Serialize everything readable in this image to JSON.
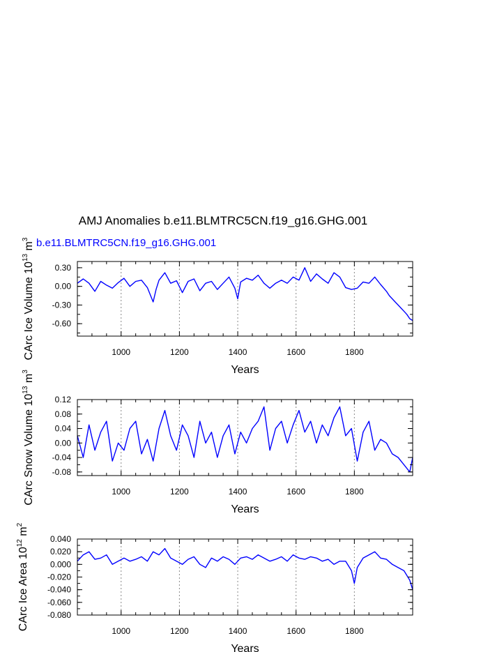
{
  "title": "AMJ Anomalies b.e11.BLMTRC5CN.f19_g16.GHG.001",
  "colors": {
    "series": "#0000ff",
    "axis": "#000000",
    "grid": "#888888"
  },
  "chart_data": [
    {
      "type": "line",
      "legend_label": "b.e11.BLMTRC5CN.f19_g16.GHG.001",
      "ylabel": {
        "main": "CArc Ice Volume 10",
        "exp1": "13",
        "mid": " m",
        "exp2": "3"
      },
      "xlabel": "Years",
      "xlim": [
        850,
        2000
      ],
      "ylim": [
        -0.8,
        0.4
      ],
      "xticks": [
        1000,
        1200,
        1400,
        1600,
        1800
      ],
      "xtick_labels": [
        "1000",
        "1200",
        "1400",
        "1600",
        "1800"
      ],
      "yticks": [
        0.3,
        0.0,
        -0.3,
        -0.6
      ],
      "ytick_labels": [
        "0.30",
        "0.00",
        "-0.30",
        "-0.60"
      ],
      "x": [
        850,
        870,
        890,
        910,
        930,
        950,
        970,
        990,
        1010,
        1030,
        1050,
        1070,
        1090,
        1110,
        1120,
        1130,
        1150,
        1170,
        1190,
        1210,
        1230,
        1250,
        1270,
        1290,
        1310,
        1330,
        1350,
        1370,
        1390,
        1400,
        1410,
        1430,
        1450,
        1470,
        1490,
        1510,
        1530,
        1550,
        1570,
        1590,
        1610,
        1630,
        1650,
        1670,
        1690,
        1710,
        1730,
        1750,
        1770,
        1790,
        1810,
        1830,
        1850,
        1870,
        1890,
        1910,
        1920,
        1930,
        1940,
        1950,
        1960,
        1970,
        1980,
        1990,
        2000
      ],
      "values": [
        0.05,
        0.12,
        0.05,
        -0.08,
        0.08,
        0.02,
        -0.03,
        0.06,
        0.13,
        0.0,
        0.08,
        0.1,
        -0.02,
        -0.25,
        -0.05,
        0.1,
        0.22,
        0.05,
        0.09,
        -0.1,
        0.08,
        0.12,
        -0.07,
        0.05,
        0.08,
        -0.05,
        0.05,
        0.15,
        -0.03,
        -0.2,
        0.07,
        0.13,
        0.1,
        0.18,
        0.05,
        -0.03,
        0.05,
        0.1,
        0.05,
        0.15,
        0.1,
        0.3,
        0.08,
        0.2,
        0.12,
        0.05,
        0.22,
        0.15,
        -0.02,
        -0.05,
        -0.03,
        0.07,
        0.05,
        0.15,
        0.03,
        -0.08,
        -0.15,
        -0.2,
        -0.25,
        -0.3,
        -0.35,
        -0.4,
        -0.45,
        -0.52,
        -0.55
      ]
    },
    {
      "type": "line",
      "ylabel": {
        "main": "CArc Snow Volume 10",
        "exp1": "13",
        "mid": " m",
        "exp2": "3"
      },
      "xlabel": "Years",
      "xlim": [
        850,
        2000
      ],
      "ylim": [
        -0.09,
        0.12
      ],
      "xticks": [
        1000,
        1200,
        1400,
        1600,
        1800
      ],
      "xtick_labels": [
        "1000",
        "1200",
        "1400",
        "1600",
        "1800"
      ],
      "yticks": [
        0.12,
        0.08,
        0.04,
        0.0,
        -0.04,
        -0.08
      ],
      "ytick_labels": [
        "0.12",
        "0.08",
        "0.04",
        "0.00",
        "-0.04",
        "-0.08"
      ],
      "x": [
        850,
        870,
        890,
        910,
        930,
        950,
        970,
        990,
        1010,
        1030,
        1050,
        1070,
        1090,
        1110,
        1130,
        1150,
        1170,
        1190,
        1210,
        1230,
        1250,
        1270,
        1290,
        1310,
        1330,
        1350,
        1370,
        1390,
        1410,
        1430,
        1450,
        1470,
        1490,
        1510,
        1530,
        1550,
        1570,
        1590,
        1610,
        1630,
        1650,
        1670,
        1690,
        1710,
        1730,
        1750,
        1770,
        1790,
        1810,
        1830,
        1850,
        1870,
        1890,
        1910,
        1930,
        1950,
        1970,
        1990,
        2000
      ],
      "values": [
        0.02,
        -0.04,
        0.05,
        -0.02,
        0.03,
        0.06,
        -0.05,
        0.0,
        -0.02,
        0.04,
        0.06,
        -0.03,
        0.01,
        -0.05,
        0.04,
        0.09,
        0.02,
        -0.02,
        0.05,
        0.02,
        -0.04,
        0.06,
        0.0,
        0.03,
        -0.04,
        0.02,
        0.05,
        -0.03,
        0.03,
        0.0,
        0.04,
        0.06,
        0.1,
        -0.02,
        0.04,
        0.06,
        0.0,
        0.05,
        0.09,
        0.03,
        0.06,
        0.0,
        0.05,
        0.02,
        0.07,
        0.1,
        0.02,
        0.04,
        -0.05,
        0.03,
        0.06,
        -0.02,
        0.01,
        0.0,
        -0.03,
        -0.04,
        -0.06,
        -0.08,
        -0.04
      ]
    },
    {
      "type": "line",
      "ylabel": {
        "main": "CArc Ice Area 10",
        "exp1": "12",
        "mid": " m",
        "exp2": "2"
      },
      "xlabel": "Years",
      "xlim": [
        850,
        2000
      ],
      "ylim": [
        -0.08,
        0.04
      ],
      "xticks": [
        1000,
        1200,
        1400,
        1600,
        1800
      ],
      "xtick_labels": [
        "1000",
        "1200",
        "1400",
        "1600",
        "1800"
      ],
      "yticks": [
        0.04,
        0.02,
        0.0,
        -0.02,
        -0.04,
        -0.06,
        -0.08
      ],
      "ytick_labels": [
        "0.040",
        "0.020",
        "0.000",
        "-0.020",
        "-0.040",
        "-0.060",
        "-0.080"
      ],
      "x": [
        850,
        870,
        890,
        910,
        930,
        950,
        970,
        990,
        1010,
        1030,
        1050,
        1070,
        1090,
        1110,
        1130,
        1150,
        1170,
        1190,
        1210,
        1230,
        1250,
        1270,
        1290,
        1310,
        1330,
        1350,
        1370,
        1390,
        1410,
        1430,
        1450,
        1470,
        1490,
        1510,
        1530,
        1550,
        1570,
        1590,
        1610,
        1630,
        1650,
        1670,
        1690,
        1710,
        1730,
        1750,
        1770,
        1790,
        1800,
        1810,
        1830,
        1850,
        1870,
        1890,
        1910,
        1930,
        1950,
        1970,
        1990,
        2000
      ],
      "values": [
        0.005,
        0.015,
        0.02,
        0.008,
        0.01,
        0.015,
        0.0,
        0.005,
        0.01,
        0.005,
        0.008,
        0.012,
        0.005,
        0.02,
        0.015,
        0.025,
        0.01,
        0.005,
        0.0,
        0.008,
        0.012,
        0.0,
        -0.005,
        0.01,
        0.005,
        0.012,
        0.008,
        0.0,
        0.01,
        0.012,
        0.008,
        0.015,
        0.01,
        0.005,
        0.008,
        0.012,
        0.005,
        0.015,
        0.01,
        0.008,
        0.012,
        0.01,
        0.005,
        0.008,
        0.0,
        0.005,
        0.005,
        -0.01,
        -0.03,
        -0.005,
        0.01,
        0.015,
        0.02,
        0.01,
        0.008,
        0.0,
        -0.005,
        -0.01,
        -0.025,
        -0.04
      ]
    }
  ]
}
